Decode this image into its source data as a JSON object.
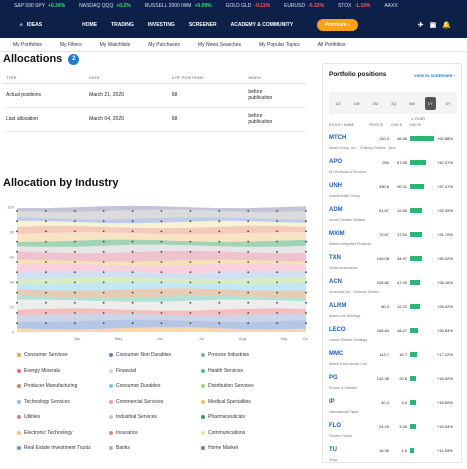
{
  "ticker": [
    {
      "name": "S&P 500 SPY",
      "value": "+0.34%",
      "dir": "pos"
    },
    {
      "name": "NASDAQ QQQ",
      "value": "+0.2%",
      "dir": "pos"
    },
    {
      "name": "RUSSELL 2000 IWM",
      "value": "+0.09%",
      "dir": "pos"
    },
    {
      "name": "GOLD GLD",
      "value": "-0.11%",
      "dir": "neg"
    },
    {
      "name": "EURUSD",
      "value": "-0.32%",
      "dir": "neg"
    },
    {
      "name": "STOX",
      "value": "-1.19%",
      "dir": "neg"
    },
    {
      "name": "AAXX",
      "value": "",
      "dir": "pos"
    }
  ],
  "nav": {
    "logo": "IDEAS",
    "items": [
      "HOME",
      "TRADING",
      "INVESTING",
      "SCREENER",
      "ACADEMY & COMMUNITY"
    ],
    "premium": "Premium ›"
  },
  "subnav": [
    "My Portfolios",
    "My Filters",
    "My Watchlists",
    "My Purchases",
    "My News Searches",
    "My Popular Topics",
    "All Portfolios"
  ],
  "allocations": {
    "title": "Allocations",
    "badge": "2",
    "headers": [
      "TYPE",
      "DATE",
      "# OF POSITIONS",
      "WHEN"
    ],
    "rows": [
      {
        "type": "Actual positions",
        "date": "March 21, 2020",
        "positions": "68",
        "when1": "before",
        "when2": "publication"
      },
      {
        "type": "Last allocation",
        "date": "March 04, 2020",
        "positions": "68",
        "when1": "before",
        "when2": "publication"
      }
    ]
  },
  "industry": {
    "title": "Allocation by Industry",
    "x_ticks": [
      "Apr",
      "May",
      "Jun",
      "Jul",
      "Aug",
      "Sep",
      "Oct"
    ],
    "y_ticks": [
      "100",
      "80",
      "60",
      "40",
      "20",
      "0"
    ]
  },
  "legend": [
    {
      "label": "Consumer Services",
      "color": "#f0a44b"
    },
    {
      "label": "Consumer Non Durables",
      "color": "#5b7fc7"
    },
    {
      "label": "Process Industries",
      "color": "#8fa1c9"
    },
    {
      "label": "Energy Minerals",
      "color": "#e86f6f"
    },
    {
      "label": "Financial",
      "color": "#d8d8d8"
    },
    {
      "label": "Health Services",
      "color": "#4fc1a1"
    },
    {
      "label": "Producer Manufacturing",
      "color": "#c98d5a"
    },
    {
      "label": "Consumer Durables",
      "color": "#7bc8e6"
    },
    {
      "label": "Distribution Services",
      "color": "#a3d977"
    },
    {
      "label": "Technology Services",
      "color": "#9bb7e0"
    },
    {
      "label": "Commercial Services",
      "color": "#f29ab5"
    },
    {
      "label": "Medical Specialties",
      "color": "#e6c15a"
    },
    {
      "label": "Utilities",
      "color": "#d97b93"
    },
    {
      "label": "Industrial Services",
      "color": "#c7c7c7"
    },
    {
      "label": "Pharmaceuticals",
      "color": "#2e9e5b"
    },
    {
      "label": "Electronic Technology",
      "color": "#f4c27a"
    },
    {
      "label": "Insurance",
      "color": "#e58a6b"
    },
    {
      "label": "Communications",
      "color": "#efe3a0"
    },
    {
      "label": "Real Estate Investment Trusts",
      "color": "#6a8fd1"
    },
    {
      "label": "Banks",
      "color": "#b0b0b0"
    },
    {
      "label": "Home Market",
      "color": "#7a7aa8"
    }
  ],
  "positions_panel": {
    "title": "Portfolio positions",
    "link": "VIEW IN SCREENER ›",
    "tabs": [
      "1D",
      "1W",
      "1M",
      "3Q",
      "6M",
      "1Y",
      "3Y"
    ],
    "active_tab": "1Y",
    "year_label": "1 YEAR",
    "col_headers": [
      "STOCK / NAME",
      "PRICE $",
      "CHG $",
      "CHG %"
    ],
    "rows": [
      {
        "ticker": "MTCH",
        "name": "Match Group, Inc. - Ordinary Shares - New",
        "price": "120.3",
        "chg": "46.46",
        "pct": "+62.88%",
        "pct_value": 62.88
      },
      {
        "ticker": "APO",
        "name": "AH Products & Services",
        "price": "294",
        "chg": "87.66",
        "pct": "+42.07%",
        "pct_value": 42.07
      },
      {
        "ticker": "UNH",
        "name": "UnitedHealth Group",
        "price": "330.6",
        "chg": "90.11",
        "pct": "+37.47%",
        "pct_value": 37.47
      },
      {
        "ticker": "ADM",
        "name": "Archer Daniels Midland",
        "price": "51.87",
        "chg": "12.68",
        "pct": "+32.39%",
        "pct_value": 32.39
      },
      {
        "ticker": "MXIM",
        "name": "Maxim Integrated Products",
        "price": "72.87",
        "chg": "17.54",
        "pct": "+31.70%",
        "pct_value": 31.7
      },
      {
        "ticker": "TXN",
        "name": "Texas Instruments",
        "price": "149.06",
        "chg": "34.97",
        "pct": "+30.42%",
        "pct_value": 30.42
      },
      {
        "ticker": "ACN",
        "name": "Accenture plc - Ordinary Shares",
        "price": "226.82",
        "chg": "47.44",
        "pct": "+26.16%",
        "pct_value": 26.16
      },
      {
        "ticker": "ALRM",
        "name": "Alarm.com Holdings",
        "price": "60.3",
        "chg": "12.22",
        "pct": "+25.42%",
        "pct_value": 25.42
      },
      {
        "ticker": "LECO",
        "name": "Lincoln Electric Holdings",
        "price": "106.84",
        "chg": "18.27",
        "pct": "+20.64%",
        "pct_value": 20.64
      },
      {
        "ticker": "MMC",
        "name": "Marsh & McLennan Cos.",
        "price": "113.7",
        "chg": "16.7",
        "pct": "+17.22%",
        "pct_value": 17.22
      },
      {
        "ticker": "PG",
        "name": "Procter & Gamble",
        "price": "142.36",
        "chg": "20.6",
        "pct": "+16.92%",
        "pct_value": 16.92
      },
      {
        "ticker": "IP",
        "name": "International Paper",
        "price": "40.4",
        "chg": "5.4",
        "pct": "+15.60%",
        "pct_value": 15.6
      },
      {
        "ticker": "FLO",
        "name": "Flowers Foods",
        "price": "24.25",
        "chg": "3.26",
        "pct": "+15.54%",
        "pct_value": 15.54
      },
      {
        "ticker": "TU",
        "name": "Telus",
        "price": "16.36",
        "chg": "1.6",
        "pct": "+11.53%",
        "pct_value": 11.53
      }
    ]
  }
}
